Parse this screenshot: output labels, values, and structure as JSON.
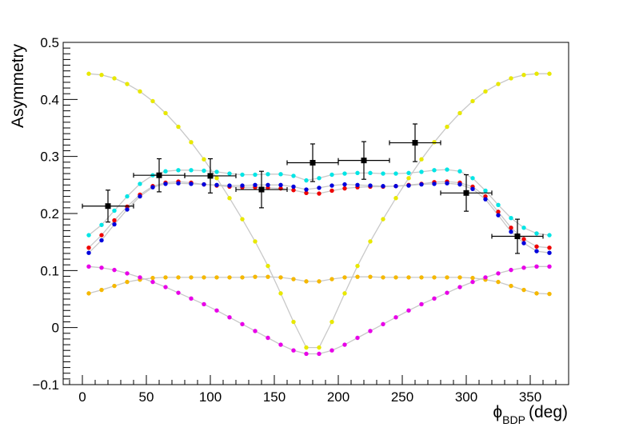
{
  "chart_data": {
    "type": "scatter",
    "title": "",
    "xlabel": {
      "main": "ϕ",
      "sub": "BDP",
      "unit": "(deg)"
    },
    "ylabel": "Asymmetry",
    "xlim": [
      -15,
      380
    ],
    "ylim": [
      -0.1,
      0.5
    ],
    "xticks": [
      0,
      50,
      100,
      150,
      200,
      250,
      300,
      350
    ],
    "xtick_labels": [
      "0",
      "50",
      "100",
      "150",
      "200",
      "250",
      "300",
      "350"
    ],
    "yticks": [
      -0.1,
      0,
      0.1,
      0.2,
      0.3,
      0.4,
      0.5
    ],
    "ytick_labels": [
      "−0.1",
      "0",
      "0.1",
      "0.2",
      "0.3",
      "0.4",
      "0.5"
    ],
    "grid": false,
    "x": [
      5,
      15,
      25,
      35,
      45,
      55,
      65,
      75,
      85,
      95,
      105,
      115,
      125,
      135,
      145,
      155,
      165,
      175,
      185,
      195,
      205,
      215,
      225,
      235,
      245,
      255,
      265,
      275,
      285,
      295,
      305,
      315,
      325,
      335,
      345,
      355,
      365
    ],
    "series": [
      {
        "color": "#e8e800",
        "line": "#c8c8c8",
        "values": [
          0.445,
          0.443,
          0.437,
          0.427,
          0.414,
          0.397,
          0.376,
          0.352,
          0.325,
          0.295,
          0.262,
          0.227,
          0.19,
          0.151,
          0.108,
          0.06,
          0.01,
          -0.035,
          -0.035,
          0.01,
          0.06,
          0.108,
          0.151,
          0.19,
          0.227,
          0.262,
          0.295,
          0.325,
          0.352,
          0.376,
          0.397,
          0.414,
          0.427,
          0.437,
          0.443,
          0.445,
          0.445
        ]
      },
      {
        "color": "#00e5e5",
        "line": "#c8c8c8",
        "values": [
          0.162,
          0.18,
          0.205,
          0.23,
          0.252,
          0.267,
          0.274,
          0.276,
          0.276,
          0.275,
          0.273,
          0.27,
          0.268,
          0.268,
          0.269,
          0.269,
          0.266,
          0.258,
          0.262,
          0.268,
          0.27,
          0.271,
          0.271,
          0.27,
          0.27,
          0.271,
          0.273,
          0.276,
          0.277,
          0.274,
          0.262,
          0.24,
          0.215,
          0.192,
          0.175,
          0.165,
          0.162
        ]
      },
      {
        "color": "#ee0000",
        "line": "#c8c8c8",
        "values": [
          0.14,
          0.162,
          0.188,
          0.212,
          0.233,
          0.248,
          0.254,
          0.256,
          0.254,
          0.251,
          0.249,
          0.247,
          0.246,
          0.246,
          0.245,
          0.244,
          0.241,
          0.236,
          0.235,
          0.24,
          0.244,
          0.246,
          0.247,
          0.247,
          0.248,
          0.25,
          0.252,
          0.255,
          0.256,
          0.254,
          0.247,
          0.23,
          0.203,
          0.175,
          0.155,
          0.142,
          0.14
        ]
      },
      {
        "color": "#0000dd",
        "line": "#c8c8c8",
        "values": [
          0.131,
          0.153,
          0.181,
          0.207,
          0.23,
          0.246,
          0.252,
          0.253,
          0.252,
          0.251,
          0.25,
          0.249,
          0.249,
          0.25,
          0.25,
          0.25,
          0.247,
          0.242,
          0.245,
          0.249,
          0.251,
          0.25,
          0.249,
          0.248,
          0.248,
          0.249,
          0.251,
          0.252,
          0.253,
          0.251,
          0.243,
          0.225,
          0.197,
          0.168,
          0.148,
          0.134,
          0.131
        ]
      },
      {
        "color": "#f5b800",
        "line": "#c8c8c8",
        "values": [
          0.06,
          0.066,
          0.073,
          0.08,
          0.084,
          0.087,
          0.088,
          0.088,
          0.088,
          0.088,
          0.088,
          0.088,
          0.088,
          0.089,
          0.089,
          0.088,
          0.085,
          0.081,
          0.081,
          0.085,
          0.088,
          0.089,
          0.089,
          0.088,
          0.088,
          0.088,
          0.088,
          0.088,
          0.088,
          0.088,
          0.087,
          0.084,
          0.08,
          0.073,
          0.066,
          0.06,
          0.059
        ]
      },
      {
        "color": "#e800e8",
        "line": "#c8c8c8",
        "values": [
          0.107,
          0.105,
          0.101,
          0.095,
          0.088,
          0.08,
          0.071,
          0.061,
          0.051,
          0.041,
          0.03,
          0.018,
          0.006,
          -0.006,
          -0.018,
          -0.03,
          -0.04,
          -0.046,
          -0.046,
          -0.04,
          -0.03,
          -0.018,
          -0.006,
          0.006,
          0.018,
          0.03,
          0.041,
          0.051,
          0.061,
          0.071,
          0.08,
          0.088,
          0.095,
          0.101,
          0.105,
          0.107,
          0.107
        ]
      }
    ],
    "measured": {
      "color": "#000000",
      "x": [
        20,
        60,
        100,
        140,
        180,
        220,
        260,
        300,
        340
      ],
      "y": [
        0.213,
        0.267,
        0.266,
        0.242,
        0.289,
        0.293,
        0.324,
        0.236,
        0.16
      ],
      "xerr": [
        20,
        20,
        20,
        20,
        20,
        20,
        20,
        20,
        20
      ],
      "yerr": [
        0.028,
        0.029,
        0.03,
        0.032,
        0.033,
        0.033,
        0.033,
        0.032,
        0.03
      ]
    }
  }
}
